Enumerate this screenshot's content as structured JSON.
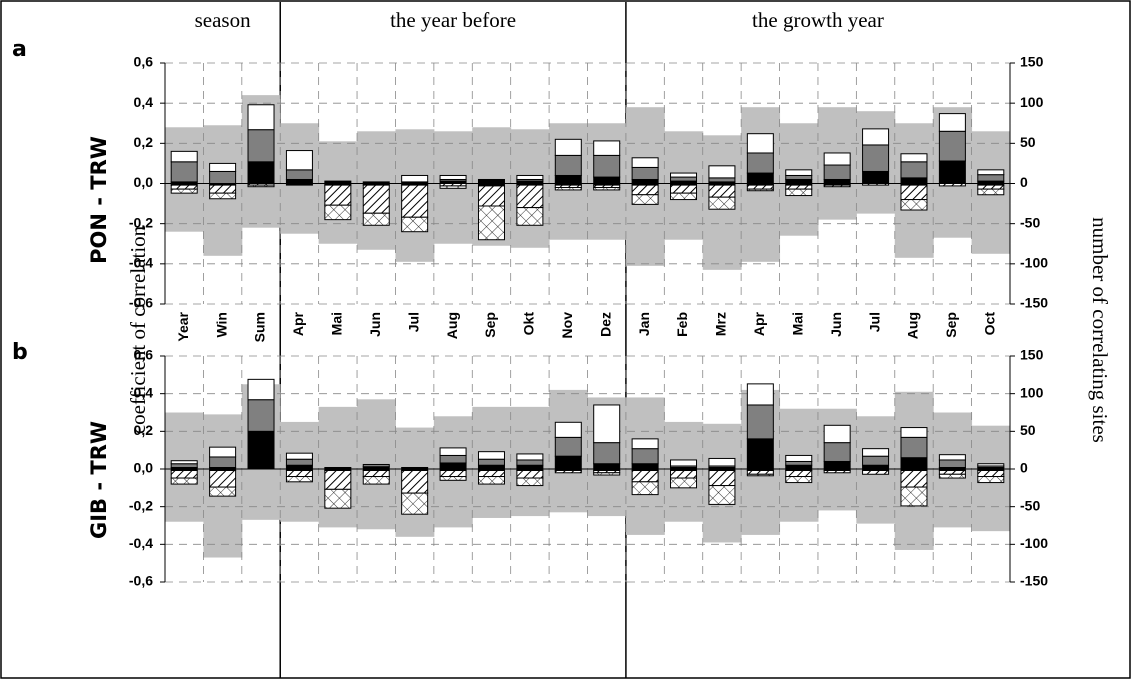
{
  "chart_data": [
    {
      "type": "bar",
      "panel_label": "a",
      "title": "PON - TRW",
      "ylabel": "coefficient of correlation",
      "y2label": "number of correlating sites",
      "groups": [
        {
          "label": "season",
          "count": 3
        },
        {
          "label": "the year before",
          "count": 9
        },
        {
          "label": "the growth year",
          "count": 10
        }
      ],
      "categories": [
        "Year",
        "Win",
        "Sum",
        "Apr",
        "Mai",
        "Jun",
        "Jul",
        "Aug",
        "Sep",
        "Okt",
        "Nov",
        "Dez",
        "Jan",
        "Feb",
        "Mrz",
        "Apr",
        "Mai",
        "Jun",
        "Jul",
        "Aug",
        "Sep",
        "Oct"
      ],
      "ylim": [
        -0.6,
        0.6
      ],
      "yticks": [
        {
          "value": -0.6,
          "label": "-0,6"
        },
        {
          "value": -0.4,
          "label": "-0,4"
        },
        {
          "value": -0.2,
          "label": "-0,2"
        },
        {
          "value": 0,
          "label": "0,0"
        },
        {
          "value": 0.2,
          "label": "0,2"
        },
        {
          "value": 0.4,
          "label": "0,4"
        },
        {
          "value": 0.6,
          "label": "0,6"
        }
      ],
      "y2lim": [
        -150,
        150
      ],
      "y2ticks": [
        -150,
        -100,
        -50,
        0,
        50,
        100,
        150
      ],
      "grid": true,
      "band": {
        "color": "#c0c0c0",
        "upper": [
          0.28,
          0.29,
          0.44,
          0.3,
          0.21,
          0.26,
          0.27,
          0.26,
          0.28,
          0.27,
          0.3,
          0.3,
          0.38,
          0.26,
          0.24,
          0.38,
          0.3,
          0.38,
          0.36,
          0.3,
          0.38,
          0.26
        ],
        "lower": [
          -0.24,
          -0.36,
          -0.22,
          -0.25,
          -0.3,
          -0.33,
          -0.39,
          -0.3,
          -0.31,
          -0.32,
          -0.28,
          -0.28,
          -0.41,
          -0.28,
          -0.43,
          -0.39,
          -0.26,
          -0.18,
          -0.15,
          -0.37,
          -0.27,
          -0.35
        ]
      },
      "series": [
        {
          "axis": "y2",
          "color": "#000000",
          "values": [
            2,
            0,
            27,
            5,
            3,
            2,
            2,
            3,
            5,
            3,
            10,
            8,
            5,
            3,
            2,
            13,
            5,
            5,
            15,
            7,
            28,
            3
          ]
        },
        {
          "axis": "y2",
          "color": "#808080",
          "values": [
            25,
            15,
            40,
            12,
            0,
            0,
            0,
            2,
            0,
            2,
            25,
            27,
            15,
            5,
            5,
            25,
            5,
            18,
            33,
            20,
            37,
            8
          ]
        },
        {
          "axis": "y2",
          "color": "#ffffff",
          "values": [
            13,
            10,
            31,
            24,
            0,
            0,
            8,
            5,
            0,
            5,
            20,
            18,
            12,
            5,
            15,
            24,
            7,
            15,
            20,
            10,
            22,
            6
          ]
        },
        {
          "axis": "y2",
          "color": "#000000",
          "values": [
            -2,
            -2,
            0,
            -2,
            -2,
            -2,
            -2,
            0,
            -3,
            -2,
            -2,
            -2,
            -2,
            -2,
            -2,
            -2,
            -2,
            -2,
            0,
            -2,
            0,
            -2
          ]
        },
        {
          "axis": "y2",
          "pattern": "diagonal",
          "values": [
            -5,
            -10,
            -2,
            0,
            -25,
            -35,
            -40,
            -3,
            -25,
            -28,
            -3,
            -3,
            -12,
            -10,
            -15,
            -5,
            -5,
            -2,
            -2,
            -18,
            -3,
            -5
          ]
        },
        {
          "axis": "y2",
          "pattern": "cross",
          "values": [
            -5,
            -7,
            -2,
            0,
            -18,
            -15,
            -18,
            -3,
            -42,
            -22,
            -3,
            -3,
            -12,
            -8,
            -15,
            -2,
            -8,
            0,
            0,
            -13,
            0,
            -7
          ]
        }
      ]
    },
    {
      "type": "bar",
      "panel_label": "b",
      "title": "GIB - TRW",
      "ylim": [
        -0.6,
        0.6
      ],
      "yticks": [
        {
          "value": -0.6,
          "label": "-0,6"
        },
        {
          "value": -0.4,
          "label": "-0,4"
        },
        {
          "value": -0.2,
          "label": "-0,2"
        },
        {
          "value": 0,
          "label": "0,0"
        },
        {
          "value": 0.2,
          "label": "0,2"
        },
        {
          "value": 0.4,
          "label": "0,4"
        },
        {
          "value": 0.6,
          "label": "0,6"
        }
      ],
      "y2lim": [
        -150,
        150
      ],
      "y2ticks": [
        -150,
        -100,
        -50,
        0,
        50,
        100,
        150
      ],
      "grid": true,
      "band": {
        "color": "#c0c0c0",
        "upper": [
          0.3,
          0.29,
          0.45,
          0.25,
          0.33,
          0.37,
          0.22,
          0.28,
          0.33,
          0.33,
          0.42,
          0.38,
          0.38,
          0.25,
          0.24,
          0.42,
          0.32,
          0.32,
          0.28,
          0.41,
          0.3,
          0.23
        ],
        "lower": [
          -0.28,
          -0.47,
          -0.27,
          -0.28,
          -0.31,
          -0.32,
          -0.36,
          -0.31,
          -0.26,
          -0.25,
          -0.23,
          -0.25,
          -0.35,
          -0.28,
          -0.39,
          -0.35,
          -0.28,
          -0.22,
          -0.29,
          -0.43,
          -0.31,
          -0.33
        ]
      },
      "series": [
        {
          "axis": "y2",
          "color": "#000000",
          "values": [
            2,
            2,
            50,
            5,
            2,
            3,
            2,
            8,
            5,
            5,
            17,
            7,
            7,
            2,
            2,
            40,
            5,
            10,
            5,
            15,
            2,
            2
          ]
        },
        {
          "axis": "y2",
          "color": "#808080",
          "values": [
            5,
            14,
            42,
            8,
            0,
            3,
            0,
            10,
            8,
            7,
            25,
            28,
            20,
            2,
            2,
            45,
            5,
            25,
            12,
            27,
            10,
            2
          ]
        },
        {
          "axis": "y2",
          "color": "#ffffff",
          "values": [
            4,
            13,
            27,
            8,
            0,
            0,
            0,
            10,
            10,
            8,
            20,
            50,
            13,
            8,
            10,
            28,
            8,
            23,
            10,
            13,
            7,
            3
          ]
        },
        {
          "axis": "y2",
          "color": "#000000",
          "values": [
            -2,
            -2,
            0,
            -2,
            -2,
            -2,
            -2,
            -2,
            -2,
            -2,
            -2,
            -2,
            -2,
            -2,
            -2,
            -2,
            -2,
            -2,
            -2,
            -2,
            -2,
            -2
          ]
        },
        {
          "axis": "y2",
          "pattern": "diagonal",
          "values": [
            -10,
            -22,
            0,
            -8,
            -25,
            -8,
            -30,
            -8,
            -8,
            -10,
            -3,
            -3,
            -15,
            -10,
            -20,
            -5,
            -8,
            -3,
            -5,
            -22,
            -5,
            -8
          ]
        },
        {
          "axis": "y2",
          "pattern": "cross",
          "values": [
            -8,
            -12,
            0,
            -7,
            -25,
            -10,
            -28,
            -5,
            -10,
            -10,
            0,
            -3,
            -17,
            -13,
            -25,
            -2,
            -8,
            0,
            0,
            -25,
            -5,
            -8
          ]
        }
      ]
    }
  ]
}
